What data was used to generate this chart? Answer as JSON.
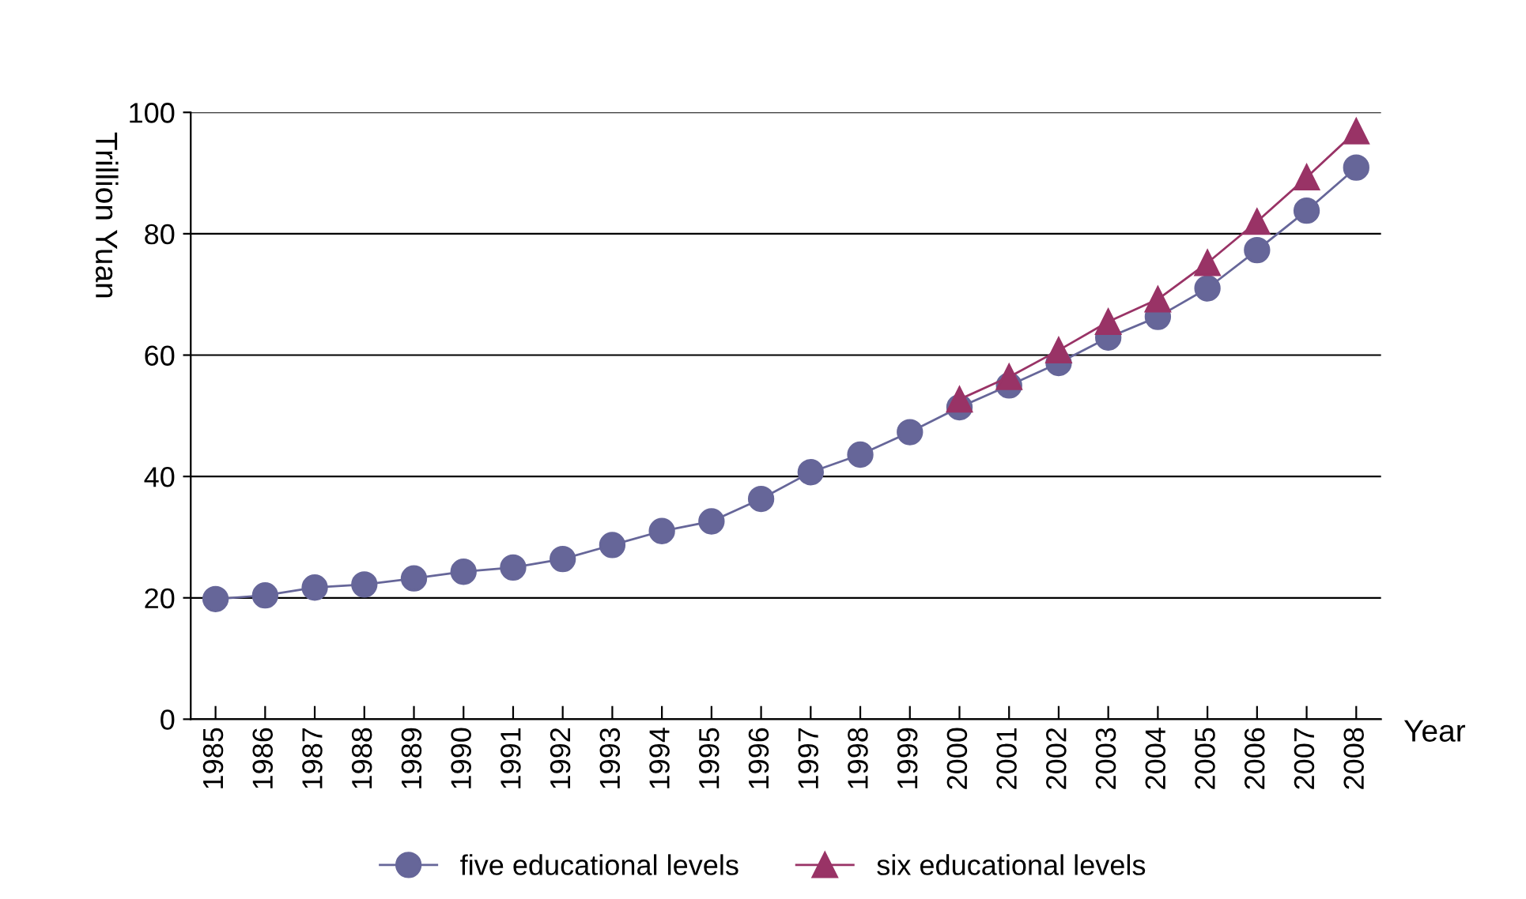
{
  "chart_data": {
    "type": "line",
    "xlabel": "Year",
    "ylabel": "Trillion Yuan",
    "categories": [
      "1985",
      "1986",
      "1987",
      "1988",
      "1989",
      "1990",
      "1991",
      "1992",
      "1993",
      "1994",
      "1995",
      "1996",
      "1997",
      "1998",
      "1999",
      "2000",
      "2001",
      "2002",
      "2003",
      "2004",
      "2005",
      "2006",
      "2007",
      "2008"
    ],
    "series": [
      {
        "name": "five educational levels",
        "color": "#666699",
        "marker": "circle",
        "values": [
          19.8,
          20.4,
          21.7,
          22.2,
          23.2,
          24.3,
          25.0,
          26.4,
          28.7,
          31.0,
          32.6,
          36.3,
          40.7,
          43.6,
          47.3,
          51.4,
          55.0,
          58.7,
          62.9,
          66.3,
          71.0,
          77.3,
          83.8,
          90.9
        ]
      },
      {
        "name": "six educational levels",
        "color": "#993366",
        "marker": "triangle",
        "values": [
          null,
          null,
          null,
          null,
          null,
          null,
          null,
          null,
          null,
          null,
          null,
          null,
          null,
          null,
          null,
          52.7,
          56.4,
          60.8,
          65.5,
          69.2,
          75.2,
          82.0,
          89.3,
          96.9
        ]
      }
    ],
    "ylim": [
      0,
      100
    ],
    "yticks": [
      0,
      20,
      40,
      60,
      80,
      100
    ],
    "grid": "y",
    "legend": "bottom"
  }
}
